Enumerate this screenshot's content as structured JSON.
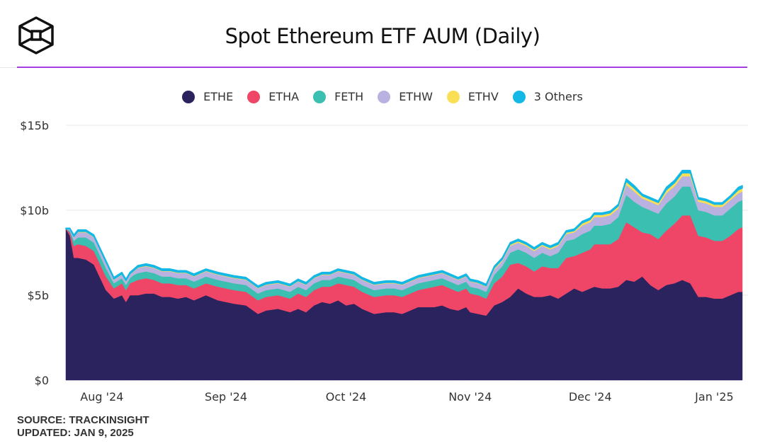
{
  "header": {
    "title": "Spot Ethereum ETF AUM (Daily)",
    "logo": "cube-logo"
  },
  "footer": {
    "source": "SOURCE: TRACKINSIGHT",
    "updated": "UPDATED: JAN 9, 2025"
  },
  "colors": {
    "accent_rule": "#a43ee0",
    "ETHE": "#2a235e",
    "ETHA": "#ef4566",
    "FETH": "#3bbfb1",
    "ETHW": "#b9b2e0",
    "ETHV": "#fadf55",
    "3 Others": "#14b8e6"
  },
  "chart_data": {
    "type": "area",
    "stacked": true,
    "title": "Spot Ethereum ETF AUM (Daily)",
    "xlabel": "",
    "ylabel": "",
    "ylim": [
      0,
      15
    ],
    "y_unit": "billions USD",
    "yticks": [
      {
        "value": 0,
        "label": "$0"
      },
      {
        "value": 5,
        "label": "$5b"
      },
      {
        "value": 10,
        "label": "$10b"
      },
      {
        "value": 15,
        "label": "$15b"
      }
    ],
    "xticks": [
      {
        "day": 9,
        "label": "Aug '24"
      },
      {
        "day": 40,
        "label": "Sep '24"
      },
      {
        "day": 70,
        "label": "Oct '24"
      },
      {
        "day": 101,
        "label": "Nov '24"
      },
      {
        "day": 131,
        "label": "Dec '24"
      },
      {
        "day": 162,
        "label": "Jan '25"
      }
    ],
    "x_start": "2024-07-23",
    "x_unit": "days since 2024-07-23",
    "grid": true,
    "legend": "top-center",
    "x": [
      0,
      1,
      2,
      3,
      5,
      7,
      9,
      10,
      12,
      14,
      15,
      16,
      17,
      18,
      20,
      22,
      24,
      26,
      28,
      30,
      32,
      35,
      38,
      40,
      42,
      45,
      48,
      50,
      53,
      56,
      58,
      60,
      62,
      64,
      66,
      68,
      70,
      72,
      74,
      77,
      80,
      82,
      84,
      86,
      88,
      90,
      92,
      94,
      96,
      98,
      100,
      101,
      103,
      105,
      107,
      109,
      111,
      113,
      115,
      117,
      119,
      121,
      123,
      125,
      127,
      129,
      131,
      132,
      134,
      136,
      138,
      140,
      142,
      144,
      146,
      148,
      150,
      152,
      154,
      156,
      158,
      160,
      162,
      164,
      166,
      168,
      169
    ],
    "series": [
      {
        "name": "ETHE",
        "values": [
          8.9,
          8.5,
          7.2,
          7.2,
          7.1,
          6.8,
          5.8,
          5.3,
          4.8,
          5.0,
          4.6,
          5.0,
          5.0,
          5.0,
          5.1,
          5.1,
          4.9,
          4.9,
          4.8,
          4.9,
          4.7,
          5.0,
          4.7,
          4.6,
          4.5,
          4.4,
          3.9,
          4.1,
          4.2,
          4.0,
          4.2,
          4.0,
          4.4,
          4.6,
          4.5,
          4.7,
          4.4,
          4.5,
          4.2,
          3.9,
          4.0,
          4.0,
          3.9,
          4.1,
          4.3,
          4.3,
          4.3,
          4.4,
          4.2,
          4.1,
          4.3,
          4.0,
          3.9,
          3.8,
          4.4,
          4.6,
          4.9,
          5.4,
          5.1,
          4.9,
          4.9,
          5.0,
          4.8,
          5.1,
          5.4,
          5.2,
          5.4,
          5.5,
          5.4,
          5.4,
          5.5,
          5.9,
          5.8,
          6.1,
          5.6,
          5.3,
          5.6,
          5.7,
          5.9,
          5.7,
          4.9,
          4.9,
          4.8,
          4.8,
          5.0,
          5.2,
          5.2
        ]
      },
      {
        "name": "ETHA",
        "values": [
          0.0,
          0.2,
          0.7,
          0.8,
          0.8,
          0.8,
          0.8,
          0.8,
          0.6,
          0.7,
          0.7,
          0.7,
          0.8,
          0.9,
          0.9,
          0.8,
          0.8,
          0.8,
          0.8,
          0.7,
          0.7,
          0.7,
          0.8,
          0.8,
          0.8,
          0.8,
          0.8,
          0.8,
          0.8,
          0.8,
          0.9,
          0.9,
          0.9,
          0.9,
          1.0,
          1.0,
          1.2,
          1.0,
          1.0,
          1.0,
          1.0,
          1.0,
          1.0,
          1.0,
          1.0,
          1.1,
          1.2,
          1.2,
          1.2,
          1.1,
          1.1,
          1.1,
          1.1,
          1.0,
          1.3,
          1.5,
          1.9,
          1.5,
          1.6,
          1.5,
          1.8,
          1.6,
          1.8,
          2.1,
          1.9,
          2.3,
          2.3,
          2.5,
          2.6,
          2.6,
          2.8,
          3.4,
          3.2,
          2.6,
          3.0,
          3.0,
          3.2,
          3.5,
          3.8,
          4.0,
          3.6,
          3.5,
          3.4,
          3.4,
          3.5,
          3.7,
          3.8
        ]
      },
      {
        "name": "FETH",
        "values": [
          0.0,
          0.1,
          0.3,
          0.4,
          0.5,
          0.5,
          0.5,
          0.5,
          0.3,
          0.3,
          0.3,
          0.3,
          0.4,
          0.4,
          0.4,
          0.4,
          0.4,
          0.4,
          0.4,
          0.4,
          0.4,
          0.4,
          0.4,
          0.4,
          0.4,
          0.4,
          0.4,
          0.4,
          0.4,
          0.4,
          0.4,
          0.4,
          0.4,
          0.4,
          0.4,
          0.4,
          0.4,
          0.4,
          0.4,
          0.4,
          0.4,
          0.4,
          0.4,
          0.4,
          0.4,
          0.4,
          0.4,
          0.4,
          0.4,
          0.4,
          0.4,
          0.4,
          0.4,
          0.4,
          0.5,
          0.6,
          0.7,
          0.8,
          0.8,
          0.8,
          0.8,
          0.7,
          0.9,
          1.0,
          1.0,
          1.1,
          1.1,
          1.1,
          1.1,
          1.2,
          1.3,
          1.6,
          1.5,
          1.5,
          1.4,
          1.5,
          1.6,
          1.6,
          1.7,
          1.7,
          1.5,
          1.5,
          1.5,
          1.5,
          1.6,
          1.6,
          1.6
        ]
      },
      {
        "name": "ETHW",
        "values": [
          0.0,
          0.1,
          0.2,
          0.3,
          0.3,
          0.3,
          0.3,
          0.3,
          0.2,
          0.2,
          0.2,
          0.2,
          0.2,
          0.3,
          0.3,
          0.3,
          0.3,
          0.3,
          0.3,
          0.3,
          0.3,
          0.3,
          0.3,
          0.3,
          0.3,
          0.3,
          0.3,
          0.3,
          0.3,
          0.3,
          0.3,
          0.3,
          0.3,
          0.3,
          0.3,
          0.3,
          0.3,
          0.3,
          0.3,
          0.3,
          0.3,
          0.3,
          0.3,
          0.3,
          0.3,
          0.3,
          0.3,
          0.3,
          0.3,
          0.3,
          0.3,
          0.3,
          0.3,
          0.3,
          0.3,
          0.3,
          0.4,
          0.4,
          0.4,
          0.4,
          0.4,
          0.4,
          0.4,
          0.4,
          0.4,
          0.5,
          0.5,
          0.5,
          0.5,
          0.5,
          0.5,
          0.6,
          0.6,
          0.5,
          0.5,
          0.5,
          0.6,
          0.6,
          0.6,
          0.6,
          0.5,
          0.5,
          0.5,
          0.5,
          0.5,
          0.5,
          0.5
        ]
      },
      {
        "name": "ETHV",
        "values": [
          0.0,
          0.0,
          0.05,
          0.05,
          0.05,
          0.05,
          0.05,
          0.05,
          0.05,
          0.05,
          0.05,
          0.05,
          0.05,
          0.05,
          0.05,
          0.05,
          0.05,
          0.05,
          0.05,
          0.05,
          0.05,
          0.05,
          0.05,
          0.05,
          0.05,
          0.05,
          0.05,
          0.05,
          0.05,
          0.05,
          0.05,
          0.05,
          0.05,
          0.05,
          0.05,
          0.05,
          0.05,
          0.05,
          0.05,
          0.05,
          0.05,
          0.05,
          0.05,
          0.05,
          0.05,
          0.05,
          0.05,
          0.05,
          0.05,
          0.05,
          0.05,
          0.05,
          0.05,
          0.05,
          0.1,
          0.1,
          0.1,
          0.1,
          0.1,
          0.1,
          0.1,
          0.1,
          0.1,
          0.1,
          0.1,
          0.15,
          0.15,
          0.15,
          0.15,
          0.15,
          0.15,
          0.2,
          0.2,
          0.15,
          0.15,
          0.15,
          0.2,
          0.2,
          0.2,
          0.2,
          0.15,
          0.15,
          0.15,
          0.15,
          0.15,
          0.2,
          0.2
        ]
      },
      {
        "name": "3 Others",
        "values": [
          0.05,
          0.05,
          0.1,
          0.1,
          0.1,
          0.1,
          0.1,
          0.1,
          0.1,
          0.1,
          0.1,
          0.1,
          0.1,
          0.1,
          0.1,
          0.1,
          0.1,
          0.1,
          0.1,
          0.1,
          0.1,
          0.1,
          0.1,
          0.1,
          0.1,
          0.1,
          0.1,
          0.1,
          0.1,
          0.1,
          0.1,
          0.1,
          0.1,
          0.1,
          0.1,
          0.1,
          0.1,
          0.1,
          0.1,
          0.1,
          0.1,
          0.1,
          0.1,
          0.1,
          0.1,
          0.1,
          0.1,
          0.1,
          0.1,
          0.1,
          0.1,
          0.1,
          0.1,
          0.1,
          0.1,
          0.1,
          0.1,
          0.1,
          0.1,
          0.1,
          0.1,
          0.1,
          0.1,
          0.1,
          0.1,
          0.1,
          0.1,
          0.1,
          0.1,
          0.1,
          0.1,
          0.15,
          0.15,
          0.1,
          0.1,
          0.1,
          0.15,
          0.15,
          0.15,
          0.15,
          0.1,
          0.1,
          0.1,
          0.1,
          0.1,
          0.15,
          0.15
        ]
      }
    ]
  }
}
